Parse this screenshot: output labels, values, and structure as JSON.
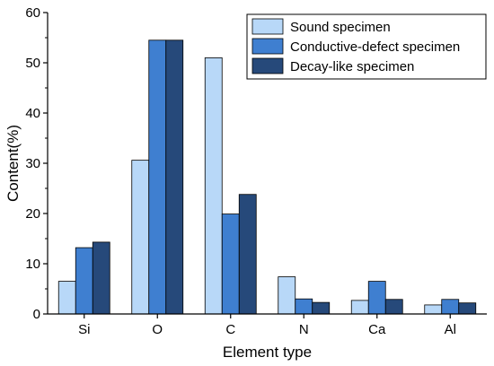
{
  "chart_data": {
    "type": "bar",
    "xlabel": "Element type",
    "ylabel": "Content(%)",
    "categories": [
      "Si",
      "O",
      "C",
      "N",
      "Ca",
      "Al"
    ],
    "ylim": [
      0,
      60
    ],
    "yticks": [
      0,
      10,
      20,
      30,
      40,
      50,
      60
    ],
    "grid": false,
    "legend_position": "top-right",
    "series": [
      {
        "name": "Sound specimen",
        "color": "#b8d8f8",
        "values": [
          6.5,
          30.6,
          51.0,
          7.4,
          2.7,
          1.8
        ]
      },
      {
        "name": "Conductive-defect specimen",
        "color": "#3f7fd0",
        "values": [
          13.2,
          54.5,
          19.9,
          3.0,
          6.5,
          2.9
        ]
      },
      {
        "name": "Decay-like specimen",
        "color": "#26497a",
        "values": [
          14.3,
          54.5,
          23.8,
          2.3,
          2.9,
          2.2
        ]
      }
    ]
  }
}
